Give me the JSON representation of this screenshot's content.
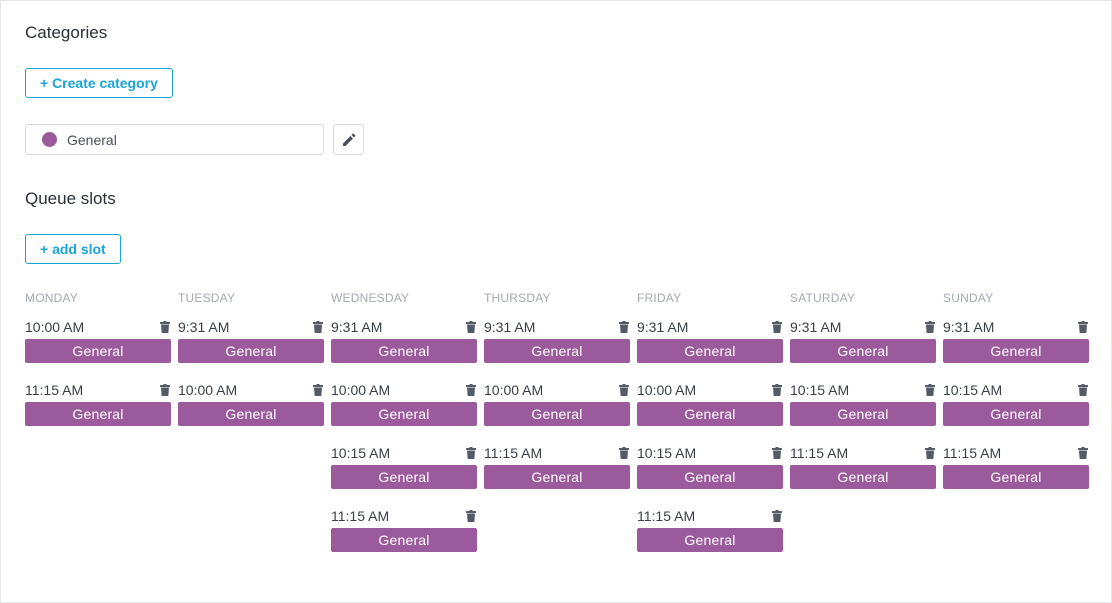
{
  "categories": {
    "heading": "Categories",
    "create_button": "+ Create category",
    "items": [
      {
        "name": "General",
        "color": "#9b5a9b"
      }
    ]
  },
  "queue": {
    "heading": "Queue slots",
    "add_button": "+ add slot",
    "tag_color": "#9b5a9b",
    "days": [
      {
        "label": "MONDAY",
        "slots": [
          {
            "time": "10:00 AM",
            "category": "General"
          },
          {
            "time": "11:15 AM",
            "category": "General"
          }
        ]
      },
      {
        "label": "TUESDAY",
        "slots": [
          {
            "time": "9:31 AM",
            "category": "General"
          },
          {
            "time": "10:00 AM",
            "category": "General"
          }
        ]
      },
      {
        "label": "WEDNESDAY",
        "slots": [
          {
            "time": "9:31 AM",
            "category": "General"
          },
          {
            "time": "10:00 AM",
            "category": "General"
          },
          {
            "time": "10:15 AM",
            "category": "General"
          },
          {
            "time": "11:15 AM",
            "category": "General"
          }
        ]
      },
      {
        "label": "THURSDAY",
        "slots": [
          {
            "time": "9:31 AM",
            "category": "General"
          },
          {
            "time": "10:00 AM",
            "category": "General"
          },
          {
            "time": "11:15 AM",
            "category": "General"
          }
        ]
      },
      {
        "label": "FRIDAY",
        "slots": [
          {
            "time": "9:31 AM",
            "category": "General"
          },
          {
            "time": "10:00 AM",
            "category": "General"
          },
          {
            "time": "10:15 AM",
            "category": "General"
          },
          {
            "time": "11:15 AM",
            "category": "General"
          }
        ]
      },
      {
        "label": "SATURDAY",
        "slots": [
          {
            "time": "9:31 AM",
            "category": "General"
          },
          {
            "time": "10:15 AM",
            "category": "General"
          },
          {
            "time": "11:15 AM",
            "category": "General"
          }
        ]
      },
      {
        "label": "SUNDAY",
        "slots": [
          {
            "time": "9:31 AM",
            "category": "General"
          },
          {
            "time": "10:15 AM",
            "category": "General"
          },
          {
            "time": "11:15 AM",
            "category": "General"
          }
        ]
      }
    ]
  }
}
